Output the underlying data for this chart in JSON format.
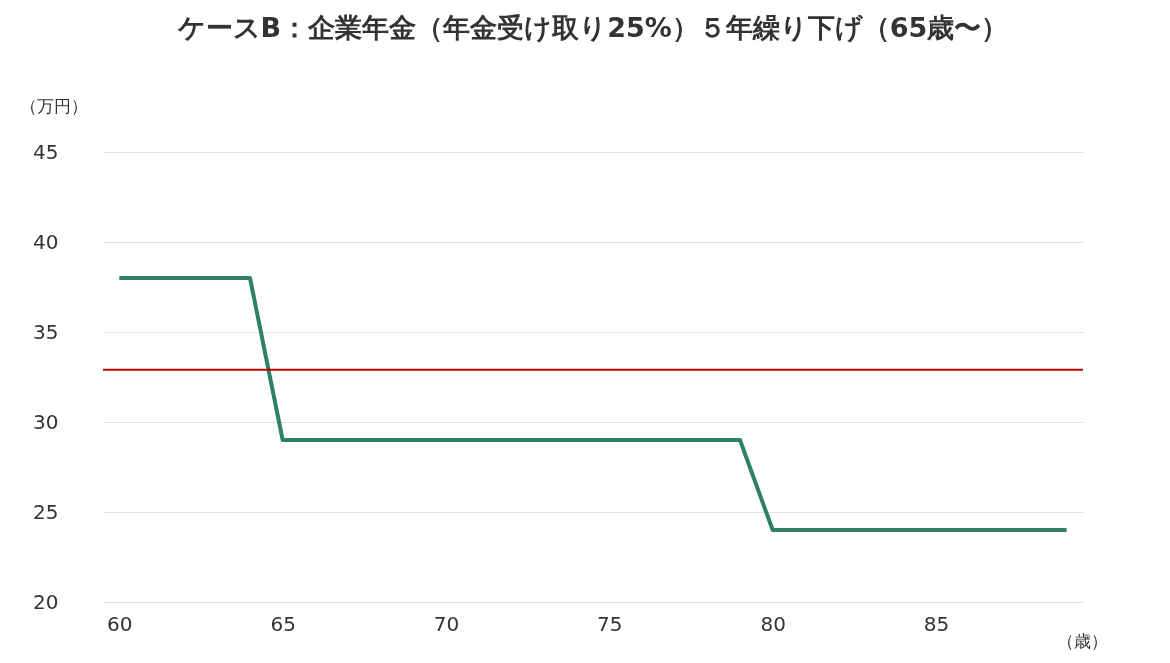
{
  "chart_data": {
    "type": "line",
    "title": "ケースB：企業年金（年金受け取り25%）５年繰り下げ（65歳〜）",
    "xlabel": "（歳）",
    "ylabel": "（万円）",
    "x": [
      60,
      64,
      65,
      79,
      80,
      89
    ],
    "series": [
      {
        "color": "#2e8068",
        "values": [
          38,
          38,
          29,
          29,
          24,
          24
        ]
      }
    ],
    "xlim": [
      59.5,
      89.5
    ],
    "xticks": [
      60,
      65,
      70,
      75,
      80,
      85
    ],
    "ylim": [
      20,
      45
    ],
    "yticks": [
      20,
      25,
      30,
      35,
      40,
      45
    ],
    "ref_lines": [
      {
        "axis": "y",
        "value": 32.9,
        "color": "#c00000"
      }
    ],
    "grid": "y",
    "marker": "none",
    "line_style": "solid"
  }
}
